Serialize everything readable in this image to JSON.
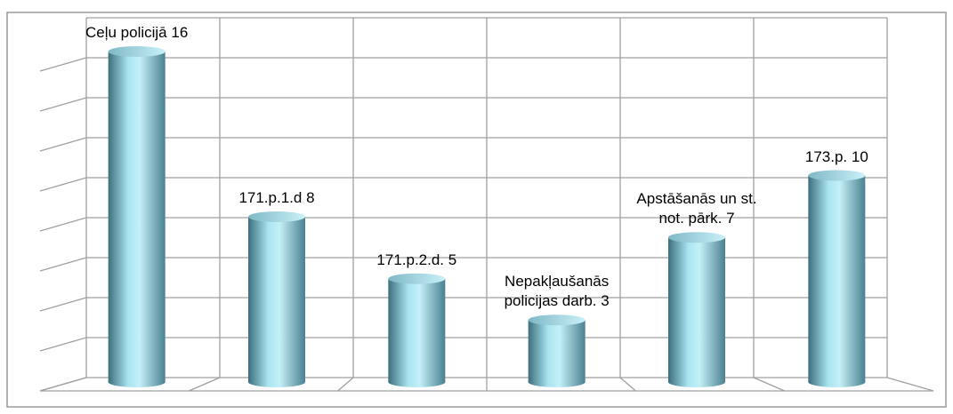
{
  "chart_data": {
    "type": "bar",
    "categories": [
      "Ceļu policijā",
      "171.p.1.d",
      "171.p.2.d.",
      "Nepakļaušanās policijas darb.",
      "Apstāšanās un st. not. pārk.",
      "173.p."
    ],
    "values": [
      16,
      8,
      5,
      3,
      7,
      10
    ],
    "color": "#8fd3e3",
    "ylim": [
      0,
      16
    ],
    "yticks": [
      0,
      2,
      4,
      6,
      8,
      10,
      12,
      14,
      16
    ],
    "grid": true
  }
}
